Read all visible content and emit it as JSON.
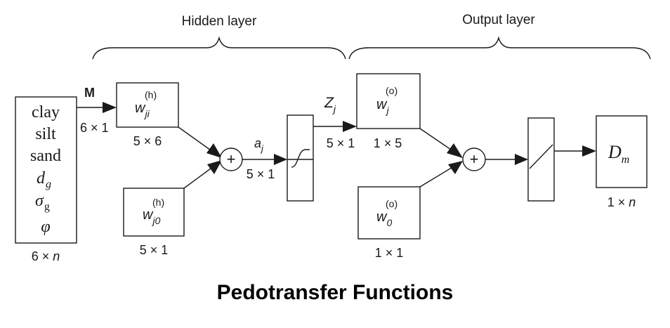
{
  "labels": {
    "hidden_layer": "Hidden layer",
    "output_layer": "Output layer"
  },
  "input": {
    "vars": [
      "clay",
      "silt",
      "sand",
      "d",
      "σ",
      "φ"
    ],
    "subscript": "g",
    "dim_left": "6 × ",
    "dim_n": "n",
    "arrow_label": "M",
    "arrow_dim": "6 × 1"
  },
  "hidden": {
    "weight_base": "w",
    "weight_sup": "(h)",
    "weight_sub": "ji",
    "weight_dim": "5 × 6",
    "bias_base": "w",
    "bias_sup": "(h)",
    "bias_sub": "j0",
    "bias_dim": "5 × 1",
    "a_base": "a",
    "a_sub": "j",
    "a_dim": "5 × 1"
  },
  "z": {
    "base": "Z",
    "sub": "j",
    "dim": "5 × 1"
  },
  "output": {
    "weight_base": "w",
    "weight_sup": "(o)",
    "weight_sub": "j",
    "weight_dim": "1 × 5",
    "bias_base": "w",
    "bias_sup": "(o)",
    "bias_sub": "0",
    "bias_dim": "1 × 1",
    "result_base": "D",
    "result_sub": "m",
    "result_dim_left": "1 × ",
    "result_dim_n": "n"
  },
  "symbols": {
    "sum": "+"
  },
  "caption": "Pedotransfer Functions"
}
